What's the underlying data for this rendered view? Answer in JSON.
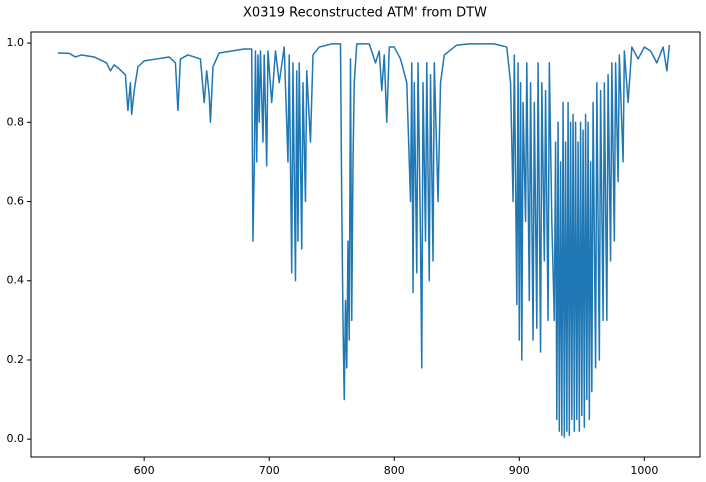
{
  "chart_data": {
    "type": "line",
    "title": "X0319 Reconstructed ATM' from DTW",
    "color": "#1f77b4",
    "xlim": [
      509.5,
      1044.5
    ],
    "ylim": [
      -0.045,
      1.028
    ],
    "xticks": [
      600,
      700,
      800,
      900,
      1000
    ],
    "yticks": [
      {
        "value": 0,
        "label": "0.0"
      },
      0.2,
      0.4,
      0.6,
      0.8,
      {
        "value": 1,
        "label": "1.0"
      }
    ],
    "x": [
      531,
      540,
      545,
      550,
      560,
      570,
      573,
      576,
      580,
      585,
      587,
      589,
      590,
      592,
      595,
      600,
      610,
      620,
      625,
      627,
      629,
      635,
      645,
      648,
      650,
      652,
      653,
      655,
      660,
      670,
      680,
      686,
      687,
      688,
      689,
      690,
      691,
      692,
      693,
      695,
      696,
      698,
      699,
      702,
      705,
      708,
      712,
      715,
      716,
      718,
      719,
      721,
      722,
      723,
      724,
      726,
      727,
      729,
      730,
      733,
      735,
      740,
      750,
      757,
      758,
      759,
      760,
      761,
      762,
      763,
      764,
      765,
      766,
      767,
      768,
      770,
      780,
      785,
      788,
      790,
      792,
      794,
      796,
      800,
      805,
      810,
      813,
      814,
      815,
      816,
      818,
      819,
      821,
      822,
      823,
      825,
      826,
      828,
      829,
      831,
      832,
      835,
      837,
      840,
      850,
      860,
      870,
      880,
      890,
      893,
      895,
      896,
      898,
      899,
      900,
      901,
      902,
      903,
      905,
      906,
      908,
      909,
      911,
      912,
      914,
      915,
      917,
      918,
      920,
      921,
      923,
      924,
      926,
      928,
      929,
      930,
      931,
      932,
      933,
      934,
      935,
      936,
      937,
      938,
      939,
      940,
      941,
      942,
      943,
      944,
      945,
      946,
      947,
      948,
      949,
      950,
      951,
      952,
      953,
      954,
      955,
      956,
      957,
      958,
      959,
      961,
      962,
      964,
      965,
      967,
      968,
      970,
      971,
      973,
      974,
      976,
      977,
      979,
      980,
      983,
      984,
      987,
      990,
      995,
      1000,
      1005,
      1010,
      1015,
      1018,
      1020
    ],
    "values": [
      0.975,
      0.974,
      0.965,
      0.97,
      0.965,
      0.95,
      0.93,
      0.945,
      0.935,
      0.92,
      0.83,
      0.9,
      0.82,
      0.88,
      0.94,
      0.955,
      0.96,
      0.965,
      0.95,
      0.83,
      0.96,
      0.97,
      0.96,
      0.85,
      0.93,
      0.87,
      0.8,
      0.94,
      0.975,
      0.98,
      0.985,
      0.985,
      0.5,
      0.68,
      0.98,
      0.7,
      0.97,
      0.8,
      0.98,
      0.75,
      0.97,
      0.69,
      0.98,
      0.85,
      0.98,
      0.9,
      0.99,
      0.7,
      0.97,
      0.42,
      0.95,
      0.4,
      0.93,
      0.5,
      0.95,
      0.48,
      0.9,
      0.6,
      0.93,
      0.75,
      0.97,
      0.99,
      0.998,
      0.998,
      0.6,
      0.3,
      0.1,
      0.35,
      0.18,
      0.5,
      0.25,
      0.96,
      0.3,
      0.7,
      0.9,
      0.998,
      0.998,
      0.95,
      0.98,
      0.88,
      0.97,
      0.8,
      0.99,
      0.99,
      0.96,
      0.9,
      0.6,
      0.95,
      0.37,
      0.9,
      0.42,
      0.95,
      0.5,
      0.18,
      0.9,
      0.5,
      0.95,
      0.4,
      0.92,
      0.45,
      0.95,
      0.6,
      0.9,
      0.97,
      0.995,
      0.998,
      0.998,
      0.998,
      0.99,
      0.9,
      0.6,
      0.97,
      0.34,
      0.95,
      0.25,
      0.9,
      0.2,
      0.85,
      0.55,
      0.95,
      0.35,
      0.9,
      0.25,
      0.85,
      0.28,
      0.95,
      0.22,
      0.9,
      0.45,
      0.88,
      0.3,
      0.95,
      0.55,
      0.3,
      0.75,
      0.05,
      0.8,
      0.02,
      0.7,
      0.01,
      0.85,
      0.005,
      0.75,
      0.02,
      0.85,
      0.01,
      0.8,
      0.05,
      0.82,
      0.02,
      0.8,
      0.05,
      0.75,
      0.02,
      0.8,
      0.06,
      0.78,
      0.03,
      0.82,
      0.1,
      0.8,
      0.05,
      0.7,
      0.12,
      0.85,
      0.18,
      0.9,
      0.2,
      0.88,
      0.3,
      0.9,
      0.3,
      0.92,
      0.45,
      0.95,
      0.5,
      0.95,
      0.65,
      0.97,
      0.7,
      0.98,
      0.85,
      0.99,
      0.96,
      0.99,
      0.98,
      0.95,
      0.99,
      0.93,
      0.995
    ]
  }
}
